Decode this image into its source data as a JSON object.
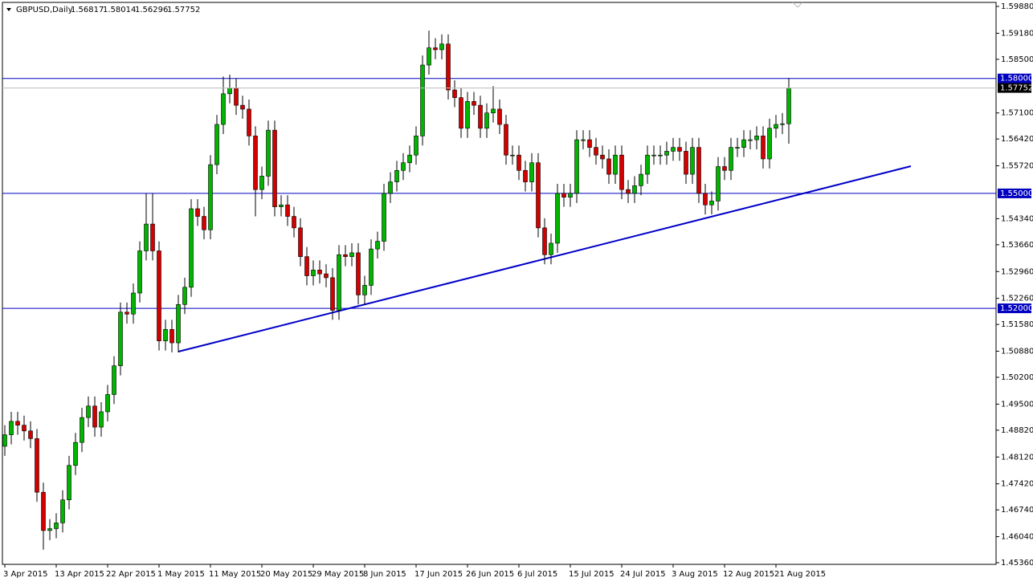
{
  "chart_data": {
    "type": "candlestick",
    "title": "GBPUSD,Daily",
    "categories": [
      "3 Apr 2015",
      null,
      null,
      null,
      null,
      null,
      null,
      null,
      "13 Apr 2015",
      null,
      null,
      null,
      null,
      null,
      null,
      null,
      "22 Apr 2015",
      null,
      null,
      null,
      null,
      null,
      null,
      null,
      "1 May 2015",
      null,
      null,
      null,
      null,
      null,
      null,
      null,
      "11 May 2015",
      null,
      null,
      null,
      null,
      null,
      null,
      null,
      "20 May 2015",
      null,
      null,
      null,
      null,
      null,
      null,
      null,
      "29 May 2015",
      null,
      null,
      null,
      null,
      null,
      null,
      null,
      "8 Jun 2015",
      null,
      null,
      null,
      null,
      null,
      null,
      null,
      "17 Jun 2015",
      null,
      null,
      null,
      null,
      null,
      null,
      null,
      "26 Jun 2015",
      null,
      null,
      null,
      null,
      null,
      null,
      null,
      "6 Jul 2015",
      null,
      null,
      null,
      null,
      null,
      null,
      null,
      "15 Jul 2015",
      null,
      null,
      null,
      null,
      null,
      null,
      null,
      "24 Jul 2015",
      null,
      null,
      null,
      null,
      null,
      null,
      null,
      "3 Aug 2015",
      null,
      null,
      null,
      null,
      null,
      null,
      null,
      "12 Aug 2015",
      null,
      null,
      null,
      null,
      null,
      null,
      null,
      "21 Aug 2015",
      null,
      null
    ],
    "open": [
      1.484,
      1.487,
      1.4905,
      1.4895,
      1.488,
      1.486,
      1.472,
      1.462,
      1.4625,
      1.464,
      1.47,
      1.479,
      1.485,
      1.4915,
      1.4945,
      1.489,
      1.493,
      1.4975,
      1.505,
      1.519,
      1.5185,
      1.524,
      1.535,
      1.542,
      1.535,
      1.5115,
      1.5145,
      1.511,
      1.521,
      1.5255,
      1.546,
      1.544,
      1.5405,
      1.5575,
      1.568,
      1.576,
      1.5775,
      1.573,
      1.572,
      1.565,
      1.551,
      1.5545,
      1.5665,
      1.5465,
      1.547,
      1.544,
      1.541,
      1.5335,
      1.5285,
      1.53,
      1.529,
      1.528,
      1.5195,
      1.534,
      1.5335,
      1.5345,
      1.5235,
      1.526,
      1.5355,
      1.5375,
      1.55,
      1.553,
      1.556,
      1.558,
      1.56,
      1.565,
      1.5835,
      1.588,
      1.5875,
      1.589,
      1.577,
      1.575,
      1.567,
      1.574,
      1.573,
      1.567,
      1.571,
      1.572,
      1.568,
      1.56,
      1.56,
      1.556,
      1.553,
      1.558,
      1.541,
      1.534,
      1.537,
      1.55,
      1.549,
      1.55,
      1.564,
      1.564,
      1.562,
      1.56,
      1.559,
      1.555,
      1.56,
      1.551,
      1.55,
      1.552,
      1.555,
      1.56,
      1.56,
      1.56,
      1.561,
      1.562,
      1.561,
      1.555,
      1.562,
      1.55,
      1.547,
      1.548,
      1.557,
      1.556,
      1.562,
      1.562,
      1.564,
      1.564,
      1.565,
      1.559,
      1.567,
      1.568,
      1.56817
    ],
    "high": [
      1.4895,
      1.493,
      1.493,
      1.492,
      1.4905,
      1.4885,
      1.4745,
      1.465,
      1.4665,
      1.4725,
      1.4815,
      1.4875,
      1.494,
      1.497,
      1.497,
      1.4955,
      1.5,
      1.5075,
      1.5215,
      1.5215,
      1.5265,
      1.5375,
      1.55,
      1.55,
      1.5375,
      1.517,
      1.517,
      1.5235,
      1.528,
      1.5485,
      1.5485,
      1.5465,
      1.56,
      1.5705,
      1.5805,
      1.581,
      1.58,
      1.5755,
      1.5745,
      1.5675,
      1.557,
      1.569,
      1.569,
      1.5495,
      1.5495,
      1.5465,
      1.5435,
      1.536,
      1.5325,
      1.5325,
      1.5315,
      1.5305,
      1.5365,
      1.5365,
      1.537,
      1.537,
      1.5285,
      1.538,
      1.54,
      1.5525,
      1.5555,
      1.5585,
      1.5605,
      1.5625,
      1.5675,
      1.586,
      1.5925,
      1.5905,
      1.5915,
      1.5915,
      1.5795,
      1.5775,
      1.5765,
      1.5765,
      1.5755,
      1.5735,
      1.578,
      1.5745,
      1.5705,
      1.5625,
      1.5625,
      1.5585,
      1.5605,
      1.5605,
      1.5435,
      1.5395,
      1.5525,
      1.5525,
      1.5525,
      1.5665,
      1.5665,
      1.5665,
      1.5645,
      1.5625,
      1.5615,
      1.5625,
      1.5625,
      1.5535,
      1.5545,
      1.5575,
      1.5625,
      1.5625,
      1.5625,
      1.5635,
      1.5645,
      1.5645,
      1.5635,
      1.5645,
      1.5645,
      1.5525,
      1.5505,
      1.5595,
      1.5595,
      1.5645,
      1.5645,
      1.5665,
      1.5665,
      1.5675,
      1.5675,
      1.5695,
      1.5705,
      1.571,
      1.58014
    ],
    "low": [
      1.4815,
      1.4845,
      1.487,
      1.4855,
      1.4835,
      1.4695,
      1.457,
      1.4595,
      1.46,
      1.4615,
      1.4675,
      1.4765,
      1.4825,
      1.489,
      1.4865,
      1.4865,
      1.4905,
      1.495,
      1.5025,
      1.516,
      1.516,
      1.5215,
      1.5325,
      1.5325,
      1.509,
      1.509,
      1.5085,
      1.5085,
      1.5185,
      1.523,
      1.5415,
      1.538,
      1.538,
      1.555,
      1.5655,
      1.5735,
      1.5705,
      1.5695,
      1.5625,
      1.544,
      1.5485,
      1.552,
      1.544,
      1.544,
      1.5415,
      1.5385,
      1.531,
      1.526,
      1.526,
      1.5265,
      1.5255,
      1.517,
      1.517,
      1.531,
      1.531,
      1.521,
      1.521,
      1.5235,
      1.533,
      1.535,
      1.5475,
      1.5505,
      1.5535,
      1.5555,
      1.5575,
      1.5625,
      1.581,
      1.585,
      1.585,
      1.5745,
      1.5725,
      1.5645,
      1.5645,
      1.5705,
      1.5645,
      1.5645,
      1.5685,
      1.5655,
      1.5575,
      1.5575,
      1.5535,
      1.5505,
      1.5505,
      1.5385,
      1.5315,
      1.5315,
      1.5345,
      1.5465,
      1.5465,
      1.5475,
      1.5615,
      1.5595,
      1.5575,
      1.5565,
      1.5525,
      1.5525,
      1.5485,
      1.5475,
      1.5475,
      1.5495,
      1.5525,
      1.5575,
      1.5575,
      1.5575,
      1.5585,
      1.5585,
      1.5525,
      1.5525,
      1.5475,
      1.5445,
      1.5445,
      1.5455,
      1.5535,
      1.5535,
      1.5595,
      1.5595,
      1.5615,
      1.5615,
      1.5565,
      1.5565,
      1.5645,
      1.5655,
      1.56296
    ],
    "close": [
      1.487,
      1.4905,
      1.4895,
      1.488,
      1.486,
      1.472,
      1.462,
      1.4625,
      1.464,
      1.47,
      1.479,
      1.485,
      1.4915,
      1.4945,
      1.489,
      1.493,
      1.4975,
      1.505,
      1.519,
      1.5185,
      1.524,
      1.535,
      1.542,
      1.535,
      1.5115,
      1.5145,
      1.511,
      1.521,
      1.5255,
      1.546,
      1.544,
      1.5405,
      1.5575,
      1.568,
      1.576,
      1.5775,
      1.573,
      1.572,
      1.565,
      1.551,
      1.5545,
      1.5665,
      1.5465,
      1.547,
      1.544,
      1.541,
      1.5335,
      1.5285,
      1.53,
      1.529,
      1.528,
      1.5195,
      1.534,
      1.5335,
      1.5345,
      1.5235,
      1.526,
      1.5355,
      1.5375,
      1.55,
      1.553,
      1.556,
      1.558,
      1.56,
      1.565,
      1.5835,
      1.588,
      1.5875,
      1.589,
      1.577,
      1.575,
      1.567,
      1.574,
      1.573,
      1.567,
      1.571,
      1.572,
      1.568,
      1.56,
      1.56,
      1.556,
      1.553,
      1.558,
      1.541,
      1.534,
      1.537,
      1.55,
      1.549,
      1.55,
      1.564,
      1.564,
      1.562,
      1.56,
      1.559,
      1.555,
      1.56,
      1.551,
      1.55,
      1.552,
      1.555,
      1.56,
      1.56,
      1.56,
      1.561,
      1.562,
      1.561,
      1.555,
      1.562,
      1.55,
      1.547,
      1.548,
      1.557,
      1.556,
      1.562,
      1.562,
      1.564,
      1.564,
      1.565,
      1.559,
      1.567,
      1.568,
      1.56817,
      1.57752
    ],
    "up_color": "#00b400",
    "down_color": "#d40000",
    "wick_color": "#000000",
    "xlim": [
      -0.375,
      154.25
    ],
    "ylim": [
      1.45318,
      1.59985
    ],
    "yticks": [
      {
        "value": 1.5988,
        "label": "1.59880"
      },
      {
        "value": 1.5918,
        "label": "1.59180"
      },
      {
        "value": 1.585,
        "label": "1.58500"
      },
      {
        "value": 1.571,
        "label": "1.57100"
      },
      {
        "value": 1.5642,
        "label": "1.56420"
      },
      {
        "value": 1.5572,
        "label": "1.55720"
      },
      {
        "value": 1.5434,
        "label": "1.54340"
      },
      {
        "value": 1.5366,
        "label": "1.53660"
      },
      {
        "value": 1.5296,
        "label": "1.52960"
      },
      {
        "value": 1.5226,
        "label": "1.52260"
      },
      {
        "value": 1.5158,
        "label": "1.51580"
      },
      {
        "value": 1.5088,
        "label": "1.50880"
      },
      {
        "value": 1.502,
        "label": "1.50200"
      },
      {
        "value": 1.495,
        "label": "1.49500"
      },
      {
        "value": 1.4882,
        "label": "1.48820"
      },
      {
        "value": 1.4812,
        "label": "1.48120"
      },
      {
        "value": 1.4742,
        "label": "1.47420"
      },
      {
        "value": 1.4674,
        "label": "1.46740"
      },
      {
        "value": 1.4604,
        "label": "1.46040"
      },
      {
        "value": 1.4536,
        "label": "1.45360"
      }
    ],
    "hlines": [
      {
        "value": 1.58,
        "label": "1.58000"
      },
      {
        "value": 1.55,
        "label": "1.55000"
      },
      {
        "value": 1.52,
        "label": "1.52000"
      }
    ],
    "hline_color": "#0000c0",
    "trendline": {
      "x": [
        27,
        141
      ],
      "y": [
        1.5087,
        1.5571
      ],
      "color": "#0000c8"
    }
  }
}
